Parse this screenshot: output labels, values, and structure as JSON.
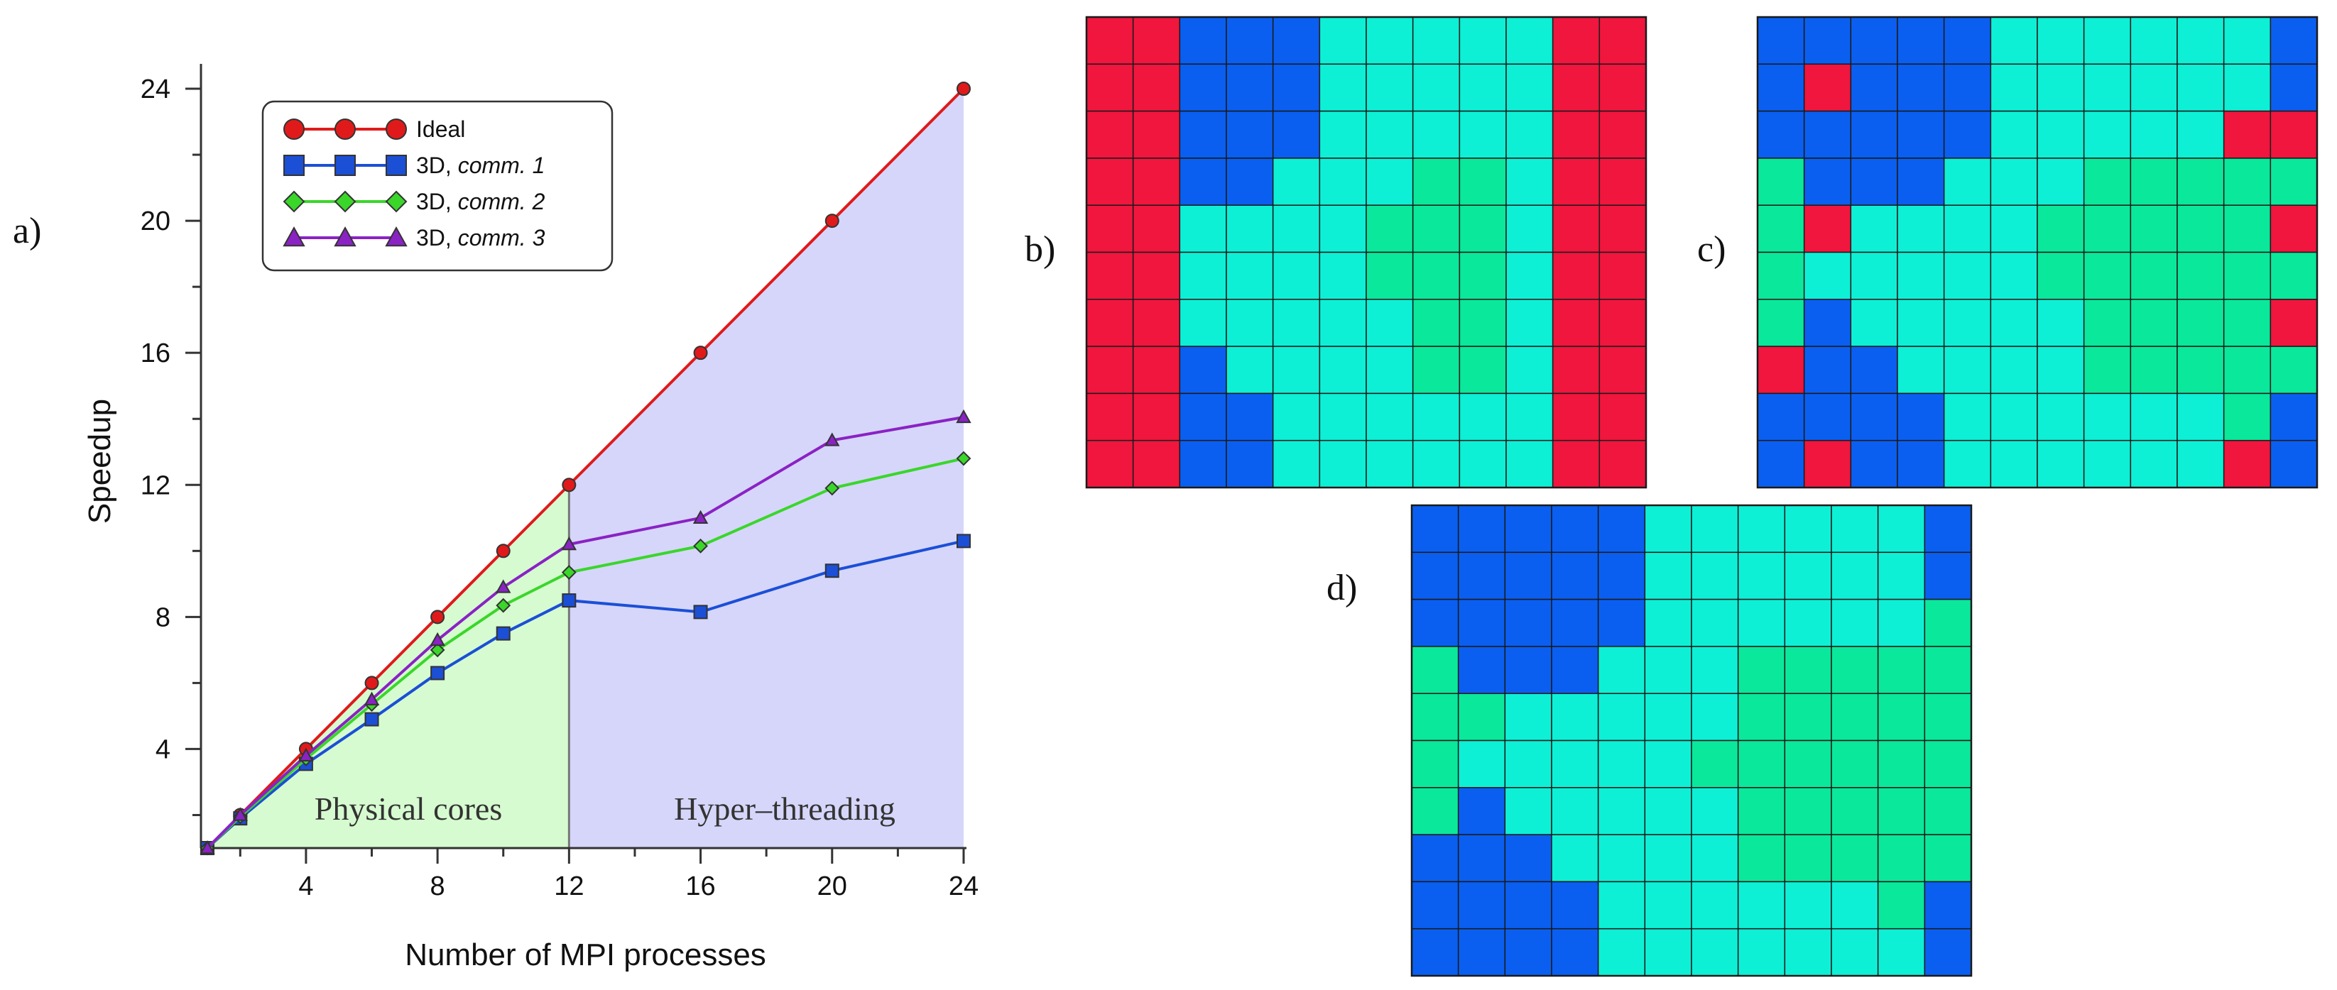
{
  "chart_data": {
    "type": "line",
    "title": "",
    "xlabel": "Number of MPI processes",
    "ylabel": "Speedup",
    "xlim": [
      1,
      24
    ],
    "ylim": [
      1,
      24
    ],
    "x_ticks": [
      4,
      8,
      12,
      16,
      20,
      24
    ],
    "y_ticks": [
      4,
      8,
      12,
      16,
      20,
      24
    ],
    "regions": [
      {
        "label": "Physical cores",
        "x_range": [
          1,
          12
        ],
        "color": "#d6fbd0"
      },
      {
        "label": "Hyper–threading",
        "x_range": [
          12,
          24
        ],
        "color": "#d6d6fb"
      }
    ],
    "series": [
      {
        "name": "Ideal",
        "marker": "circle",
        "color": "#e01a1a",
        "x": [
          1,
          2,
          4,
          6,
          8,
          10,
          12,
          16,
          20,
          24
        ],
        "values": [
          1,
          2,
          4,
          6,
          8,
          10,
          12,
          16,
          20,
          24
        ]
      },
      {
        "name": "3D, comm. 1",
        "name_prefix": "3D, ",
        "name_italic": "comm. 1",
        "marker": "square",
        "color": "#1b4fd6",
        "x": [
          1,
          2,
          4,
          6,
          8,
          10,
          12,
          16,
          20,
          24
        ],
        "values": [
          1,
          1.9,
          3.55,
          4.9,
          6.3,
          7.5,
          8.5,
          8.15,
          9.4,
          10.3
        ]
      },
      {
        "name": "3D, comm. 2",
        "name_prefix": "3D, ",
        "name_italic": "comm. 2",
        "marker": "diamond",
        "color": "#3ad62a",
        "x": [
          1,
          2,
          4,
          6,
          8,
          10,
          12,
          16,
          20,
          24
        ],
        "values": [
          1,
          1.95,
          3.7,
          5.35,
          7.0,
          8.35,
          9.35,
          10.15,
          11.9,
          12.8
        ]
      },
      {
        "name": "3D, comm. 3",
        "name_prefix": "3D, ",
        "name_italic": "comm. 3",
        "marker": "triangle",
        "color": "#8a22c4",
        "x": [
          1,
          2,
          4,
          6,
          8,
          10,
          12,
          16,
          20,
          24
        ],
        "values": [
          1,
          2.0,
          3.8,
          5.5,
          7.3,
          8.9,
          10.2,
          11.0,
          13.35,
          14.05
        ]
      }
    ],
    "legend": "top-left",
    "panel_label": "a)"
  },
  "grids": [
    {
      "label": "b)",
      "cols": 12,
      "rows": 10,
      "legend_codes": {
        "R": "#f0163e",
        "B": "#0a5ff0",
        "C": "#0df0d5",
        "G": "#0ae89b"
      },
      "rows_data": [
        "RRBBBCCCCCRR",
        "RRBBBCCCCCRR",
        "RRBBBCCCCCRR",
        "RRBBCCCGGCRR",
        "RRCCCCGGGCRR",
        "RRCCCCGGGCRR",
        "RRCCCCCGGCRR",
        "RRBCCCCGGCRR",
        "RRBBCCCCCCRR",
        "RRBBCCCCCCRR"
      ]
    },
    {
      "label": "c)",
      "cols": 12,
      "rows": 10,
      "legend_codes": {
        "R": "#f0163e",
        "B": "#0a5ff0",
        "C": "#0df0d5",
        "G": "#0ae89b"
      },
      "rows_data": [
        "BBBBBCCCCCCB",
        "BRBBBCCCCCCB",
        "BBBBBCCCCCRR",
        "GBBBCCCGGGGG",
        "GRCCCCGGGGGR",
        "GCCCCCGGGGGG",
        "GBCCCCCGGGGR",
        "RBBCCCCGGGGG",
        "BBBBCCCCCCGB",
        "BRBBCCCCCCRB"
      ]
    },
    {
      "label": "d)",
      "cols": 12,
      "rows": 10,
      "legend_codes": {
        "R": "#f0163e",
        "B": "#0a5ff0",
        "C": "#0df0d5",
        "G": "#0ae89b"
      },
      "rows_data": [
        "BBBBBCCCCCCB",
        "BBBBBCCCCCCB",
        "BBBBBCCCCCCG",
        "GBBBCCCGGGGG",
        "GGCCCCCGGGGG",
        "GCCCCCGGGGGG",
        "GBCCCCCGGGGG",
        "BBBCCCCGGGGG",
        "BBBBCCCCCCGB",
        "BBBBCCCCCCCB"
      ]
    }
  ]
}
